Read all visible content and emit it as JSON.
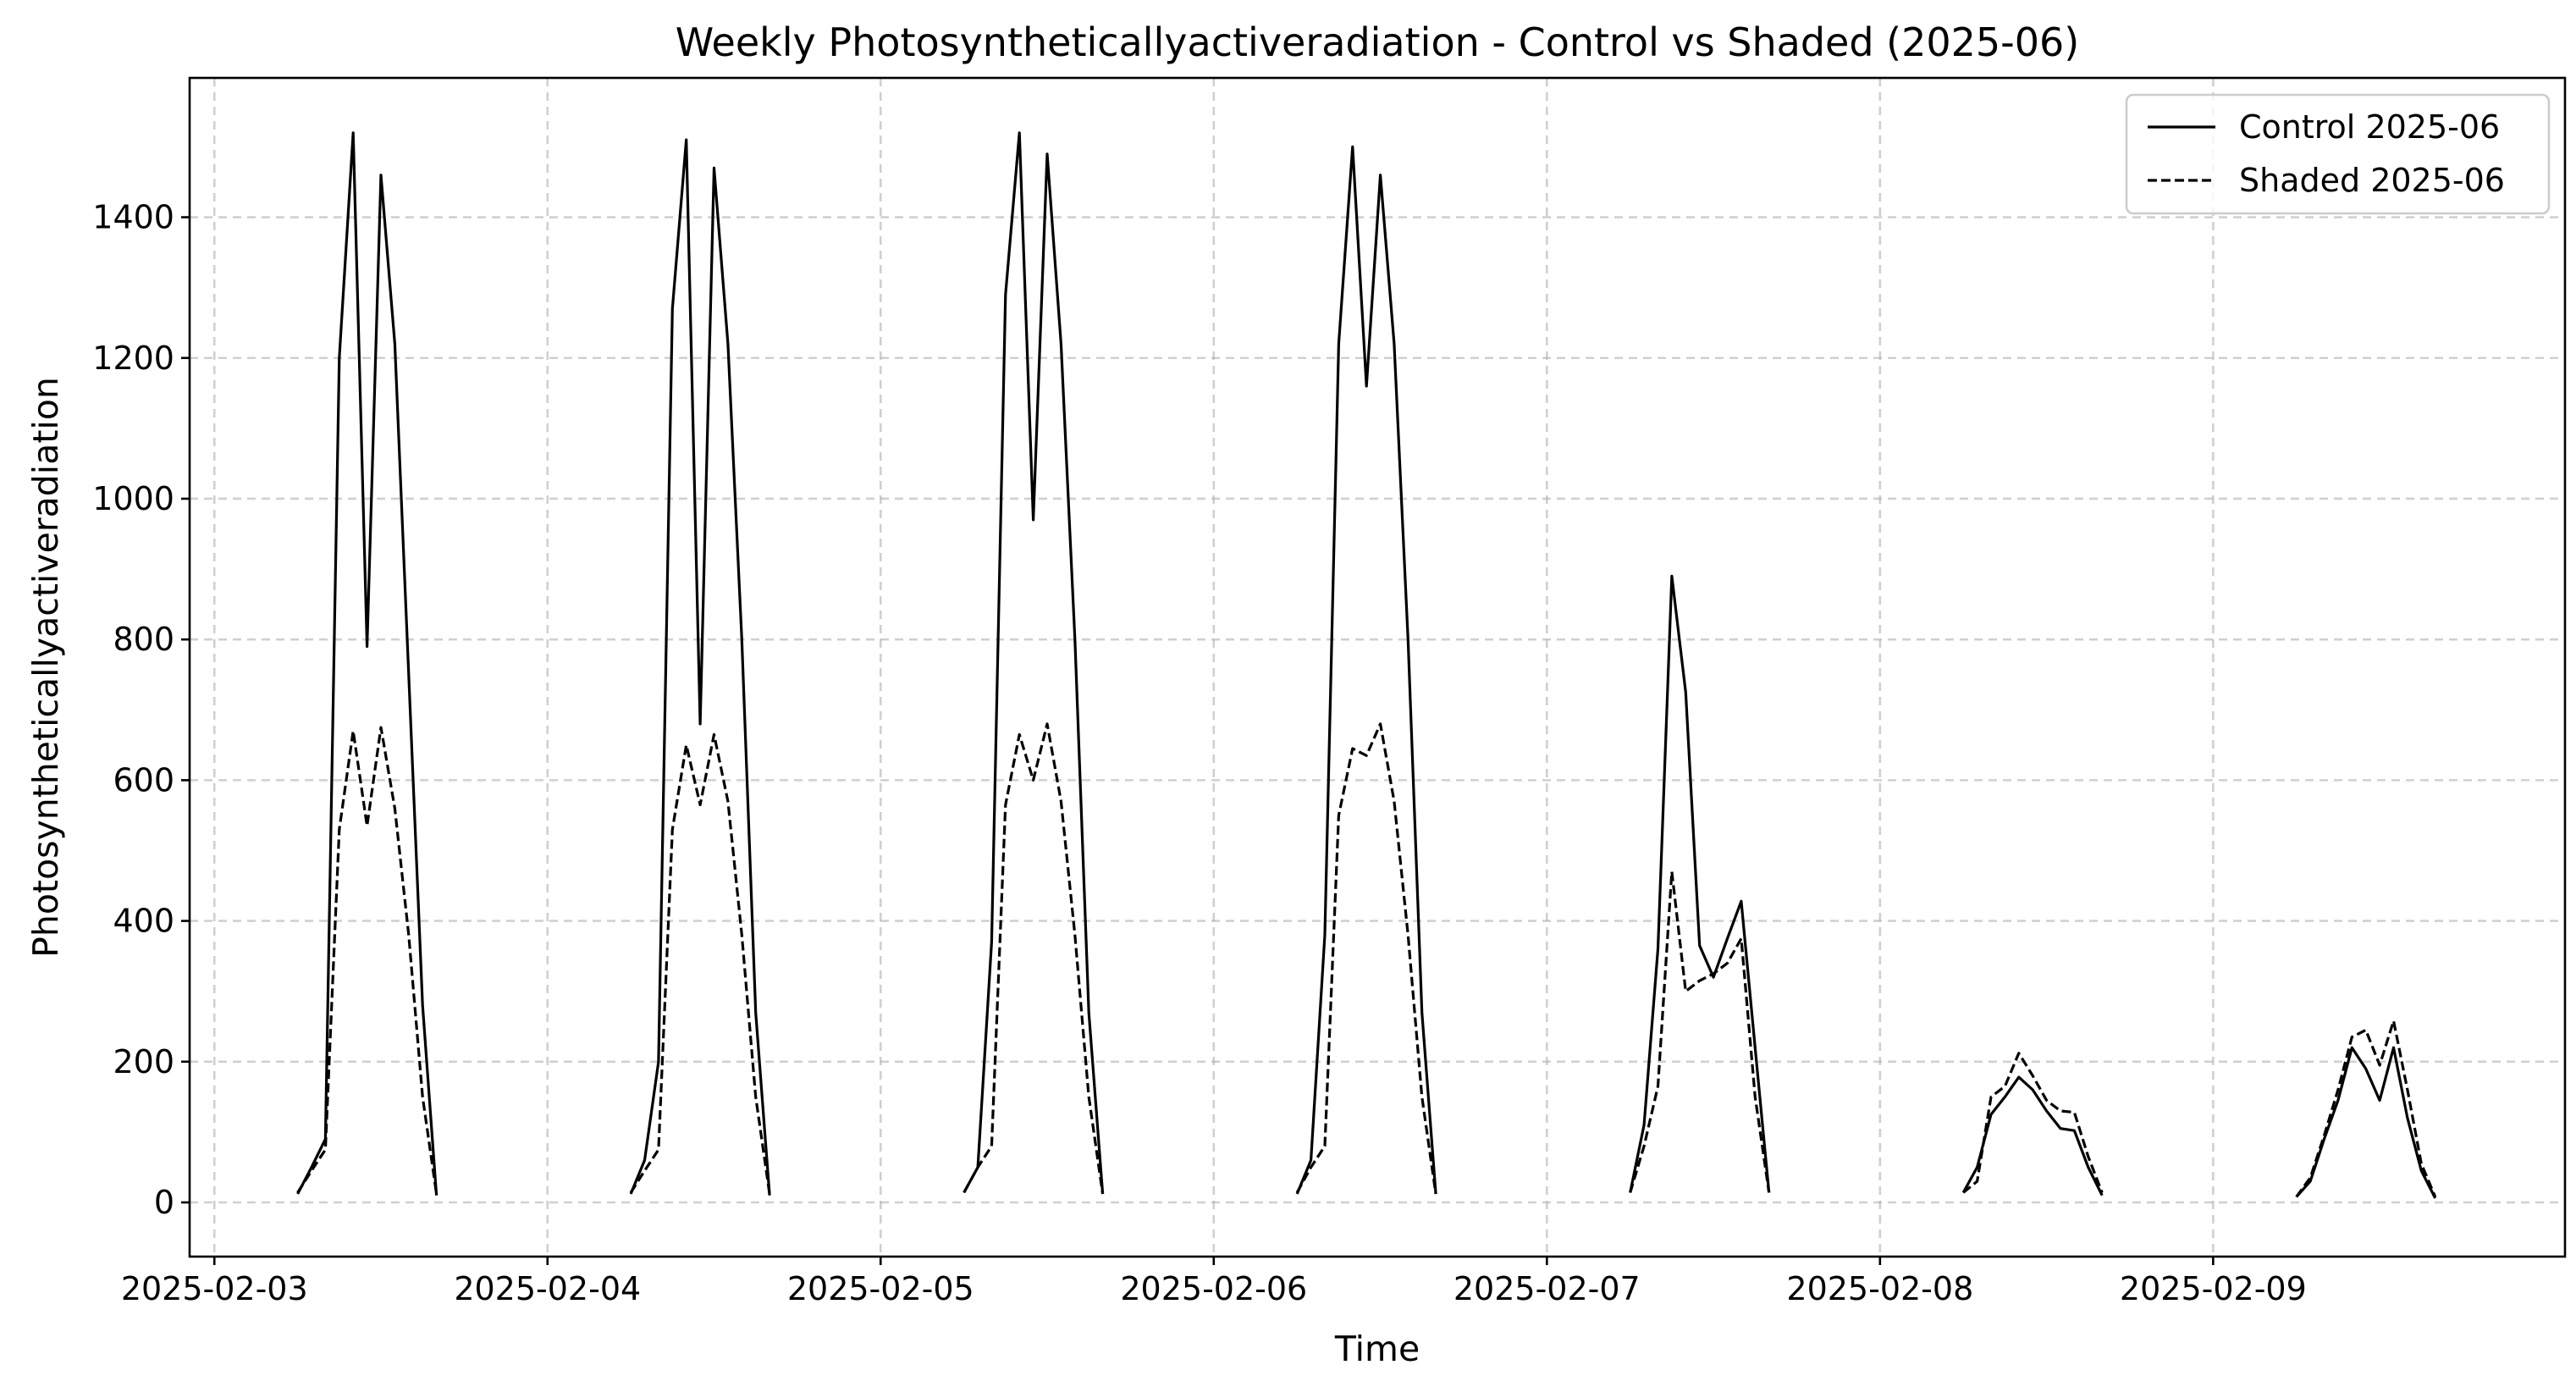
{
  "chart_data": {
    "type": "line",
    "title": "Weekly Photosyntheticallyactiveradiation - Control vs Shaded (2025-06)",
    "xlabel": "Time",
    "ylabel": "Photosyntheticallyactiveradiation",
    "x_ticks": [
      "2025-02-03",
      "2025-02-04",
      "2025-02-05",
      "2025-02-06",
      "2025-02-07",
      "2025-02-08",
      "2025-02-09"
    ],
    "y_ticks": [
      0,
      200,
      400,
      600,
      800,
      1000,
      1200,
      1400
    ],
    "xlim": [
      "2025-02-02 22:13",
      "2025-02-10 01:21"
    ],
    "ylim": [
      -77,
      1598
    ],
    "grid": true,
    "legend_position": "top-right",
    "series": [
      {
        "name": "Control 2025-06",
        "style": "solid",
        "color": "#000000",
        "points": [
          [
            "2025-02-03 06:00",
            12
          ],
          [
            "2025-02-03 07:00",
            50
          ],
          [
            "2025-02-03 08:00",
            90
          ],
          [
            "2025-02-03 09:00",
            1200
          ],
          [
            "2025-02-03 10:00",
            1520
          ],
          [
            "2025-02-03 11:00",
            790
          ],
          [
            "2025-02-03 12:00",
            1460
          ],
          [
            "2025-02-03 13:00",
            1220
          ],
          [
            "2025-02-03 14:00",
            750
          ],
          [
            "2025-02-03 15:00",
            280
          ],
          [
            "2025-02-03 16:00",
            10
          ],
          [
            "2025-02-04 06:00",
            12
          ],
          [
            "2025-02-04 07:00",
            60
          ],
          [
            "2025-02-04 08:00",
            200
          ],
          [
            "2025-02-04 09:00",
            1270
          ],
          [
            "2025-02-04 10:00",
            1510
          ],
          [
            "2025-02-04 11:00",
            680
          ],
          [
            "2025-02-04 12:00",
            1470
          ],
          [
            "2025-02-04 13:00",
            1220
          ],
          [
            "2025-02-04 14:00",
            800
          ],
          [
            "2025-02-04 15:00",
            270
          ],
          [
            "2025-02-04 16:00",
            10
          ],
          [
            "2025-02-05 06:00",
            14
          ],
          [
            "2025-02-05 07:00",
            50
          ],
          [
            "2025-02-05 08:00",
            370
          ],
          [
            "2025-02-05 09:00",
            1290
          ],
          [
            "2025-02-05 10:00",
            1520
          ],
          [
            "2025-02-05 11:00",
            970
          ],
          [
            "2025-02-05 12:00",
            1490
          ],
          [
            "2025-02-05 13:00",
            1220
          ],
          [
            "2025-02-05 14:00",
            800
          ],
          [
            "2025-02-05 15:00",
            270
          ],
          [
            "2025-02-05 16:00",
            12
          ],
          [
            "2025-02-06 06:00",
            12
          ],
          [
            "2025-02-06 07:00",
            60
          ],
          [
            "2025-02-06 08:00",
            380
          ],
          [
            "2025-02-06 09:00",
            1220
          ],
          [
            "2025-02-06 10:00",
            1500
          ],
          [
            "2025-02-06 11:00",
            1160
          ],
          [
            "2025-02-06 12:00",
            1460
          ],
          [
            "2025-02-06 13:00",
            1220
          ],
          [
            "2025-02-06 14:00",
            800
          ],
          [
            "2025-02-06 15:00",
            270
          ],
          [
            "2025-02-06 16:00",
            12
          ],
          [
            "2025-02-07 06:00",
            14
          ],
          [
            "2025-02-07 07:00",
            110
          ],
          [
            "2025-02-07 08:00",
            360
          ],
          [
            "2025-02-07 09:00",
            890
          ],
          [
            "2025-02-07 10:00",
            725
          ],
          [
            "2025-02-07 11:00",
            365
          ],
          [
            "2025-02-07 12:00",
            320
          ],
          [
            "2025-02-07 13:00",
            375
          ],
          [
            "2025-02-07 14:00",
            428
          ],
          [
            "2025-02-07 15:00",
            220
          ],
          [
            "2025-02-07 16:00",
            14
          ],
          [
            "2025-02-08 06:00",
            14
          ],
          [
            "2025-02-08 07:00",
            50
          ],
          [
            "2025-02-08 08:00",
            125
          ],
          [
            "2025-02-08 09:00",
            150
          ],
          [
            "2025-02-08 10:00",
            178
          ],
          [
            "2025-02-08 11:00",
            160
          ],
          [
            "2025-02-08 12:00",
            130
          ],
          [
            "2025-02-08 13:00",
            105
          ],
          [
            "2025-02-08 14:00",
            102
          ],
          [
            "2025-02-08 15:00",
            50
          ],
          [
            "2025-02-08 16:00",
            10
          ],
          [
            "2025-02-09 06:00",
            8
          ],
          [
            "2025-02-09 07:00",
            30
          ],
          [
            "2025-02-09 08:00",
            90
          ],
          [
            "2025-02-09 09:00",
            145
          ],
          [
            "2025-02-09 10:00",
            220
          ],
          [
            "2025-02-09 11:00",
            190
          ],
          [
            "2025-02-09 12:00",
            145
          ],
          [
            "2025-02-09 13:00",
            220
          ],
          [
            "2025-02-09 14:00",
            120
          ],
          [
            "2025-02-09 15:00",
            45
          ],
          [
            "2025-02-09 16:00",
            6
          ]
        ]
      },
      {
        "name": "Shaded 2025-06",
        "style": "dashed",
        "color": "#000000",
        "points": [
          [
            "2025-02-03 06:00",
            14
          ],
          [
            "2025-02-03 07:00",
            45
          ],
          [
            "2025-02-03 08:00",
            75
          ],
          [
            "2025-02-03 09:00",
            530
          ],
          [
            "2025-02-03 10:00",
            670
          ],
          [
            "2025-02-03 11:00",
            535
          ],
          [
            "2025-02-03 12:00",
            675
          ],
          [
            "2025-02-03 13:00",
            560
          ],
          [
            "2025-02-03 14:00",
            380
          ],
          [
            "2025-02-03 15:00",
            150
          ],
          [
            "2025-02-03 16:00",
            12
          ],
          [
            "2025-02-04 06:00",
            14
          ],
          [
            "2025-02-04 07:00",
            45
          ],
          [
            "2025-02-04 08:00",
            75
          ],
          [
            "2025-02-04 09:00",
            530
          ],
          [
            "2025-02-04 10:00",
            650
          ],
          [
            "2025-02-04 11:00",
            565
          ],
          [
            "2025-02-04 12:00",
            665
          ],
          [
            "2025-02-04 13:00",
            570
          ],
          [
            "2025-02-04 14:00",
            380
          ],
          [
            "2025-02-04 15:00",
            150
          ],
          [
            "2025-02-04 16:00",
            12
          ],
          [
            "2025-02-05 06:00",
            14
          ],
          [
            "2025-02-05 07:00",
            50
          ],
          [
            "2025-02-05 08:00",
            80
          ],
          [
            "2025-02-05 09:00",
            565
          ],
          [
            "2025-02-05 10:00",
            665
          ],
          [
            "2025-02-05 11:00",
            600
          ],
          [
            "2025-02-05 12:00",
            680
          ],
          [
            "2025-02-05 13:00",
            570
          ],
          [
            "2025-02-05 14:00",
            380
          ],
          [
            "2025-02-05 15:00",
            150
          ],
          [
            "2025-02-05 16:00",
            12
          ],
          [
            "2025-02-06 06:00",
            14
          ],
          [
            "2025-02-06 07:00",
            50
          ],
          [
            "2025-02-06 08:00",
            80
          ],
          [
            "2025-02-06 09:00",
            550
          ],
          [
            "2025-02-06 10:00",
            645
          ],
          [
            "2025-02-06 11:00",
            635
          ],
          [
            "2025-02-06 12:00",
            680
          ],
          [
            "2025-02-06 13:00",
            570
          ],
          [
            "2025-02-06 14:00",
            380
          ],
          [
            "2025-02-06 15:00",
            150
          ],
          [
            "2025-02-06 16:00",
            12
          ],
          [
            "2025-02-07 06:00",
            14
          ],
          [
            "2025-02-07 07:00",
            80
          ],
          [
            "2025-02-07 08:00",
            165
          ],
          [
            "2025-02-07 09:00",
            470
          ],
          [
            "2025-02-07 10:00",
            300
          ],
          [
            "2025-02-07 11:00",
            315
          ],
          [
            "2025-02-07 12:00",
            325
          ],
          [
            "2025-02-07 13:00",
            340
          ],
          [
            "2025-02-07 14:00",
            375
          ],
          [
            "2025-02-07 15:00",
            150
          ],
          [
            "2025-02-07 16:00",
            14
          ],
          [
            "2025-02-08 06:00",
            14
          ],
          [
            "2025-02-08 07:00",
            30
          ],
          [
            "2025-02-08 08:00",
            150
          ],
          [
            "2025-02-08 09:00",
            165
          ],
          [
            "2025-02-08 10:00",
            212
          ],
          [
            "2025-02-08 11:00",
            180
          ],
          [
            "2025-02-08 12:00",
            145
          ],
          [
            "2025-02-08 13:00",
            130
          ],
          [
            "2025-02-08 14:00",
            128
          ],
          [
            "2025-02-08 15:00",
            65
          ],
          [
            "2025-02-08 16:00",
            14
          ],
          [
            "2025-02-09 06:00",
            8
          ],
          [
            "2025-02-09 07:00",
            35
          ],
          [
            "2025-02-09 08:00",
            95
          ],
          [
            "2025-02-09 09:00",
            160
          ],
          [
            "2025-02-09 10:00",
            235
          ],
          [
            "2025-02-09 11:00",
            245
          ],
          [
            "2025-02-09 12:00",
            195
          ],
          [
            "2025-02-09 13:00",
            258
          ],
          [
            "2025-02-09 14:00",
            160
          ],
          [
            "2025-02-09 15:00",
            55
          ],
          [
            "2025-02-09 16:00",
            8
          ]
        ]
      }
    ]
  }
}
